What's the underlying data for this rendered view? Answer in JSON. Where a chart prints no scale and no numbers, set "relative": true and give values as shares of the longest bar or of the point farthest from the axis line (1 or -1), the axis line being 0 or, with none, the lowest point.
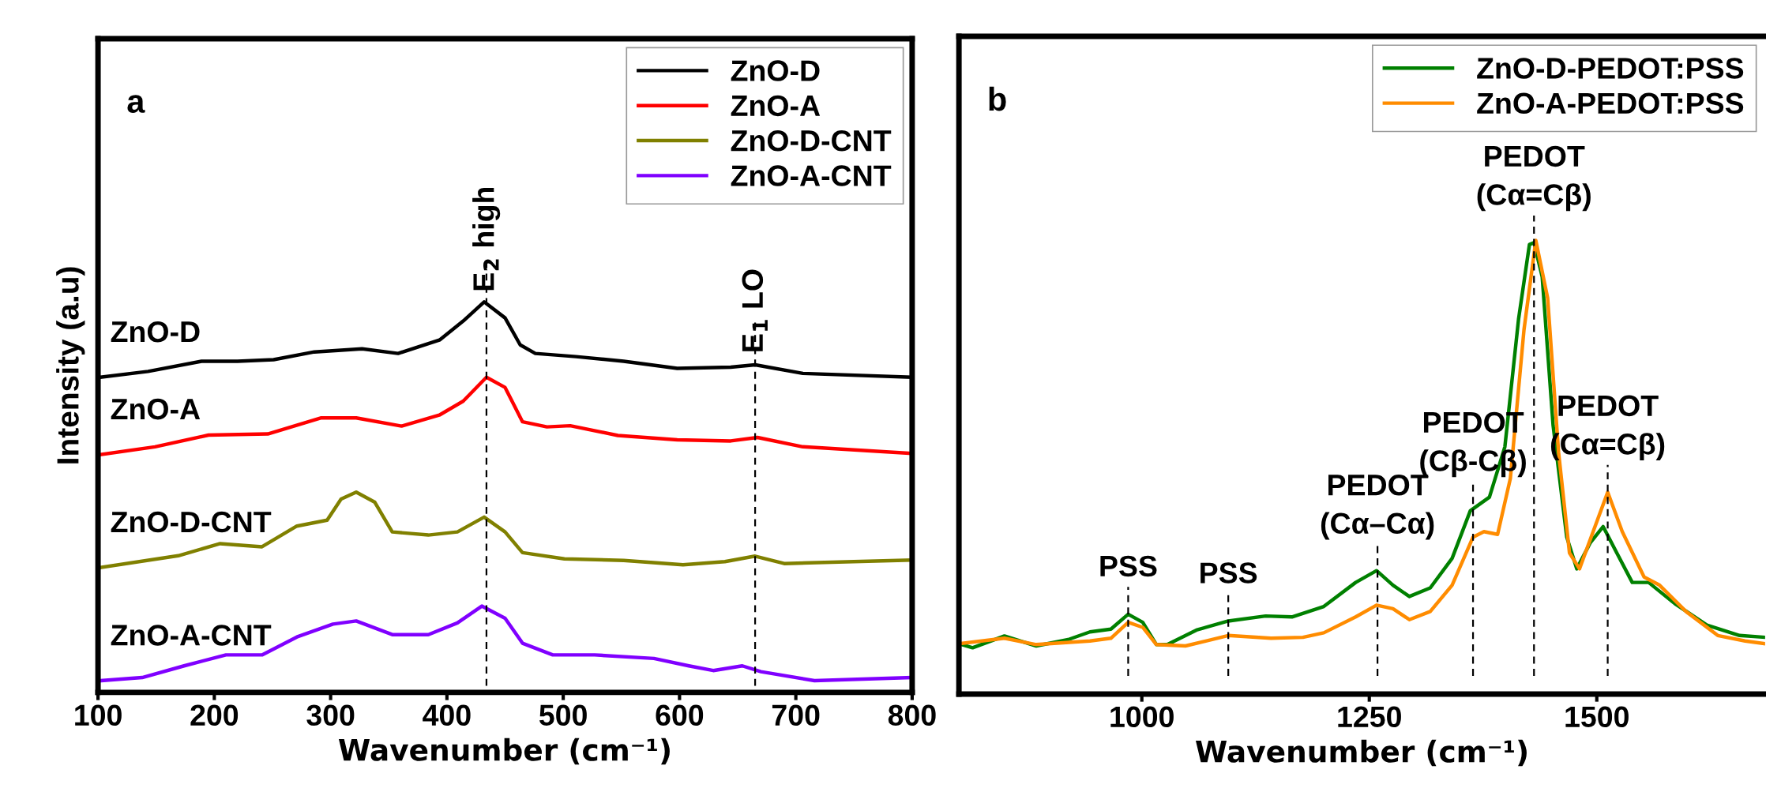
{
  "chart_data": [
    {
      "type": "line",
      "relative": true,
      "xlabel": "Wavenumber (cm⁻¹)",
      "ylabel": "Intensity (a.u)",
      "xlim": [
        100,
        800
      ],
      "xticks": [
        100,
        200,
        300,
        400,
        500,
        600,
        700,
        800
      ],
      "legend": "top right",
      "grid": false,
      "series": [
        {
          "name": "ZnO-D",
          "color": "#000000",
          "x": [
            102,
            143,
            189,
            220,
            251,
            286,
            327,
            358,
            394,
            414,
            432,
            450,
            463,
            476,
            511,
            552,
            598,
            644,
            665,
            706,
            800
          ],
          "values": [
            0.807,
            0.822,
            0.848,
            0.848,
            0.852,
            0.872,
            0.88,
            0.868,
            0.903,
            0.951,
            1.0,
            0.959,
            0.89,
            0.868,
            0.86,
            0.848,
            0.83,
            0.833,
            0.839,
            0.817,
            0.807
          ]
        },
        {
          "name": "ZnO-A",
          "color": "#ff0000",
          "x": [
            102,
            149,
            195,
            246,
            292,
            322,
            361,
            394,
            414,
            434,
            450,
            465,
            486,
            506,
            547,
            598,
            644,
            667,
            706,
            800
          ],
          "values": [
            0.609,
            0.629,
            0.659,
            0.662,
            0.703,
            0.703,
            0.682,
            0.711,
            0.746,
            0.807,
            0.781,
            0.693,
            0.68,
            0.683,
            0.658,
            0.647,
            0.644,
            0.653,
            0.629,
            0.612
          ]
        },
        {
          "name": "ZnO-D-CNT",
          "color": "#808000",
          "x": [
            102,
            169,
            205,
            241,
            271,
            297,
            309,
            322,
            338,
            353,
            384,
            409,
            432,
            450,
            465,
            501,
            552,
            603,
            639,
            665,
            690,
            800
          ],
          "values": [
            0.32,
            0.35,
            0.381,
            0.373,
            0.426,
            0.441,
            0.495,
            0.513,
            0.487,
            0.411,
            0.403,
            0.411,
            0.449,
            0.411,
            0.358,
            0.342,
            0.338,
            0.327,
            0.335,
            0.349,
            0.33,
            0.339
          ]
        },
        {
          "name": "ZnO-A-CNT",
          "color": "#8000ff",
          "x": [
            102,
            138,
            174,
            210,
            241,
            271,
            302,
            322,
            353,
            384,
            409,
            430,
            450,
            465,
            491,
            527,
            578,
            608,
            629,
            654,
            670,
            716,
            800
          ],
          "values": [
            0.03,
            0.038,
            0.068,
            0.096,
            0.096,
            0.142,
            0.175,
            0.183,
            0.148,
            0.148,
            0.178,
            0.221,
            0.19,
            0.126,
            0.096,
            0.096,
            0.087,
            0.068,
            0.056,
            0.068,
            0.053,
            0.03,
            0.038
          ]
        }
      ],
      "ref_lines": [
        {
          "axis": "x",
          "value": 434,
          "label": "E$_{2}$ high",
          "color": "#000000",
          "line_style": "dashed"
        },
        {
          "axis": "x",
          "value": 665,
          "label": "E$_{1}$ LO",
          "color": "#000000",
          "line_style": "dashed"
        }
      ],
      "annotations": [
        "a",
        "ZnO-D",
        "ZnO-A",
        "ZnO-D-CNT",
        "ZnO-A-CNT"
      ]
    },
    {
      "type": "line",
      "relative": true,
      "xlabel": "Wavenumber (cm⁻¹)",
      "xlim": [
        799,
        1685
      ],
      "xticks": [
        1000,
        1250,
        1500
      ],
      "legend": "top right",
      "grid": false,
      "series": [
        {
          "name": "ZnO-D-PEDOT:PSS",
          "color": "#008000",
          "x": [
            799,
            814,
            849,
            884,
            919,
            943,
            966,
            985,
            1001,
            1016,
            1028,
            1060,
            1095,
            1136,
            1165,
            1200,
            1235,
            1258,
            1276,
            1294,
            1317,
            1341,
            1361,
            1382,
            1399,
            1414,
            1426,
            1431,
            1440,
            1452,
            1467,
            1478,
            1493,
            1507,
            1522,
            1539,
            1557,
            1586,
            1621,
            1657,
            1685
          ],
          "values": [
            0.111,
            0.102,
            0.128,
            0.106,
            0.12,
            0.137,
            0.143,
            0.176,
            0.158,
            0.109,
            0.109,
            0.141,
            0.161,
            0.172,
            0.17,
            0.193,
            0.246,
            0.272,
            0.24,
            0.215,
            0.234,
            0.299,
            0.404,
            0.434,
            0.545,
            0.826,
            0.991,
            0.995,
            0.92,
            0.592,
            0.346,
            0.276,
            0.334,
            0.369,
            0.311,
            0.246,
            0.246,
            0.199,
            0.152,
            0.129,
            0.125
          ]
        },
        {
          "name": "ZnO-A-PEDOT:PSS",
          "color": "#ff8c00",
          "x": [
            799,
            849,
            884,
            943,
            966,
            985,
            1001,
            1016,
            1048,
            1095,
            1142,
            1177,
            1200,
            1235,
            1258,
            1276,
            1294,
            1317,
            1341,
            1364,
            1376,
            1391,
            1405,
            1420,
            1433,
            1446,
            1458,
            1470,
            1481,
            1496,
            1512,
            1528,
            1552,
            1569,
            1598,
            1633,
            1663,
            1685
          ],
          "values": [
            0.111,
            0.123,
            0.109,
            0.117,
            0.123,
            0.158,
            0.147,
            0.109,
            0.106,
            0.129,
            0.123,
            0.125,
            0.135,
            0.17,
            0.196,
            0.188,
            0.164,
            0.182,
            0.24,
            0.346,
            0.358,
            0.352,
            0.475,
            0.803,
            1.0,
            0.873,
            0.533,
            0.311,
            0.276,
            0.358,
            0.445,
            0.358,
            0.258,
            0.24,
            0.182,
            0.129,
            0.117,
            0.111
          ]
        }
      ],
      "ref_lines": [
        {
          "axis": "x",
          "value": 985,
          "label": "PSS",
          "color": "#000000",
          "line_style": "dashed"
        },
        {
          "axis": "x",
          "value": 1095,
          "label": "PSS",
          "color": "#000000",
          "line_style": "dashed"
        },
        {
          "axis": "x",
          "value": 1259,
          "label": "PEDOT\n(Cα–Cα)",
          "color": "#000000",
          "line_style": "dashed"
        },
        {
          "axis": "x",
          "value": 1364,
          "label": "PEDOT\n(Cβ-Cβ)",
          "color": "#000000",
          "line_style": "dashed"
        },
        {
          "axis": "x",
          "value": 1431,
          "label": "PEDOT\n(Cα=Cβ)",
          "color": "#000000",
          "line_style": "dashed"
        },
        {
          "axis": "x",
          "value": 1512,
          "label": "PEDOT\n(Cα=Cβ)",
          "color": "#000000",
          "line_style": "dashed"
        }
      ],
      "annotations": [
        "b"
      ]
    }
  ]
}
